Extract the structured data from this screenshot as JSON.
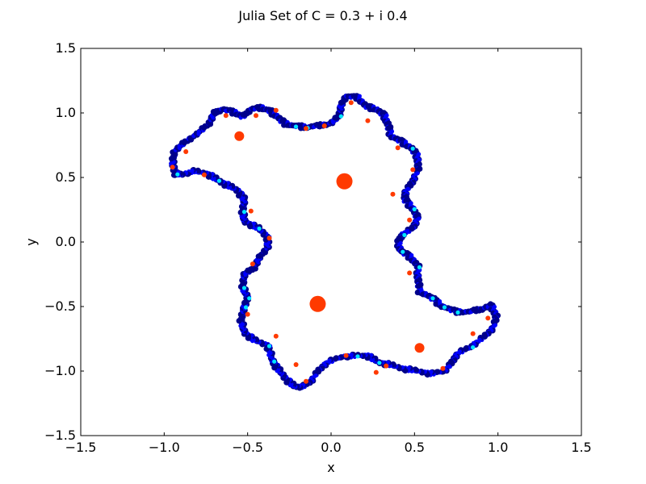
{
  "chart_data": {
    "type": "scatter",
    "title": "Julia Set of C = 0.3 + i 0.4",
    "xlabel": "x",
    "ylabel": "y",
    "xlim": [
      -1.5,
      1.5
    ],
    "ylim": [
      -1.5,
      1.5
    ],
    "xticks": [
      -1.5,
      -1.0,
      -0.5,
      0.0,
      0.5,
      1.0,
      1.5
    ],
    "yticks": [
      -1.5,
      -1.0,
      -0.5,
      0.0,
      0.5,
      1.0,
      1.5
    ],
    "xtick_labels": [
      "−1.5",
      "−1.0",
      "−0.5",
      "0.0",
      "0.5",
      "1.0",
      "1.5"
    ],
    "ytick_labels": [
      "−1.5",
      "−1.0",
      "−0.5",
      "0.0",
      "0.5",
      "1.0",
      "1.5"
    ],
    "grid": false,
    "colors": {
      "boundary_dark": "#00008b",
      "boundary_mid": "#0000ff",
      "boundary_light": "#00e5ff",
      "interior": "#ff3a00"
    },
    "boundary": [
      [
        -0.93,
        0.53
      ],
      [
        -0.95,
        0.6
      ],
      [
        -0.94,
        0.7
      ],
      [
        -0.88,
        0.77
      ],
      [
        -0.8,
        0.84
      ],
      [
        -0.73,
        0.92
      ],
      [
        -0.7,
        1.0
      ],
      [
        -0.65,
        1.03
      ],
      [
        -0.57,
        1.0
      ],
      [
        -0.53,
        0.97
      ],
      [
        -0.48,
        1.03
      ],
      [
        -0.42,
        1.04
      ],
      [
        -0.37,
        1.02
      ],
      [
        -0.33,
        0.98
      ],
      [
        -0.28,
        0.92
      ],
      [
        -0.22,
        0.9
      ],
      [
        -0.15,
        0.89
      ],
      [
        -0.08,
        0.9
      ],
      [
        0.0,
        0.92
      ],
      [
        0.05,
        0.98
      ],
      [
        0.06,
        1.06
      ],
      [
        0.09,
        1.13
      ],
      [
        0.16,
        1.12
      ],
      [
        0.21,
        1.05
      ],
      [
        0.27,
        1.03
      ],
      [
        0.32,
        0.98
      ],
      [
        0.34,
        0.91
      ],
      [
        0.36,
        0.82
      ],
      [
        0.42,
        0.78
      ],
      [
        0.48,
        0.73
      ],
      [
        0.52,
        0.66
      ],
      [
        0.52,
        0.56
      ],
      [
        0.49,
        0.47
      ],
      [
        0.45,
        0.4
      ],
      [
        0.44,
        0.33
      ],
      [
        0.49,
        0.26
      ],
      [
        0.52,
        0.18
      ],
      [
        0.49,
        0.11
      ],
      [
        0.43,
        0.06
      ],
      [
        0.4,
        0.0
      ],
      [
        0.42,
        -0.07
      ],
      [
        0.48,
        -0.12
      ],
      [
        0.52,
        -0.19
      ],
      [
        0.52,
        -0.28
      ],
      [
        0.53,
        -0.38
      ],
      [
        0.6,
        -0.43
      ],
      [
        0.67,
        -0.5
      ],
      [
        0.75,
        -0.54
      ],
      [
        0.83,
        -0.54
      ],
      [
        0.9,
        -0.52
      ],
      [
        0.96,
        -0.49
      ],
      [
        0.99,
        -0.57
      ],
      [
        0.97,
        -0.67
      ],
      [
        0.91,
        -0.74
      ],
      [
        0.84,
        -0.81
      ],
      [
        0.76,
        -0.86
      ],
      [
        0.72,
        -0.94
      ],
      [
        0.68,
        -1.0
      ],
      [
        0.6,
        -1.02
      ],
      [
        0.52,
        -1.0
      ],
      [
        0.43,
        -0.98
      ],
      [
        0.35,
        -0.95
      ],
      [
        0.28,
        -0.93
      ],
      [
        0.22,
        -0.88
      ],
      [
        0.15,
        -0.88
      ],
      [
        0.06,
        -0.89
      ],
      [
        -0.02,
        -0.93
      ],
      [
        -0.08,
        -1.0
      ],
      [
        -0.12,
        -1.08
      ],
      [
        -0.17,
        -1.12
      ],
      [
        -0.22,
        -1.12
      ],
      [
        -0.27,
        -1.06
      ],
      [
        -0.32,
        -0.98
      ],
      [
        -0.35,
        -0.92
      ],
      [
        -0.38,
        -0.8
      ],
      [
        -0.46,
        -0.76
      ],
      [
        -0.52,
        -0.7
      ],
      [
        -0.54,
        -0.6
      ],
      [
        -0.52,
        -0.5
      ],
      [
        -0.5,
        -0.43
      ],
      [
        -0.53,
        -0.35
      ],
      [
        -0.52,
        -0.25
      ],
      [
        -0.46,
        -0.2
      ],
      [
        -0.43,
        -0.12
      ],
      [
        -0.38,
        -0.04
      ],
      [
        -0.38,
        0.04
      ],
      [
        -0.44,
        0.11
      ],
      [
        -0.52,
        0.16
      ],
      [
        -0.53,
        0.24
      ],
      [
        -0.52,
        0.33
      ],
      [
        -0.56,
        0.4
      ],
      [
        -0.62,
        0.44
      ],
      [
        -0.68,
        0.48
      ],
      [
        -0.74,
        0.53
      ],
      [
        -0.82,
        0.55
      ],
      [
        -0.9,
        0.52
      ]
    ],
    "highlight_points": [
      [
        -0.93,
        0.53
      ],
      [
        -0.68,
        0.48
      ],
      [
        -0.53,
        0.24
      ],
      [
        -0.38,
        0.04
      ],
      [
        -0.44,
        0.11
      ],
      [
        -0.5,
        -0.43
      ],
      [
        -0.52,
        -0.5
      ],
      [
        -0.35,
        -0.92
      ],
      [
        -0.38,
        -0.8
      ],
      [
        0.15,
        -0.88
      ],
      [
        0.28,
        -0.93
      ],
      [
        0.43,
        0.06
      ],
      [
        0.42,
        -0.07
      ],
      [
        0.6,
        -0.43
      ],
      [
        0.67,
        -0.5
      ],
      [
        0.75,
        -0.54
      ],
      [
        0.84,
        -0.81
      ],
      [
        -0.22,
        0.9
      ],
      [
        -0.15,
        0.89
      ],
      [
        0.05,
        0.98
      ],
      [
        0.48,
        0.73
      ],
      [
        0.49,
        0.26
      ],
      [
        0.52,
        -0.19
      ],
      [
        -0.53,
        -0.35
      ]
    ],
    "interior_points": [
      [
        0.08,
        0.47
      ],
      [
        -0.08,
        -0.48
      ],
      [
        -0.55,
        0.82
      ],
      [
        0.53,
        -0.82
      ],
      [
        0.12,
        1.08
      ],
      [
        -0.33,
        1.02
      ],
      [
        -0.87,
        0.7
      ],
      [
        -0.95,
        0.58
      ],
      [
        -0.76,
        0.52
      ],
      [
        0.22,
        0.94
      ],
      [
        0.49,
        0.56
      ],
      [
        0.47,
        0.17
      ],
      [
        0.47,
        -0.24
      ],
      [
        0.85,
        -0.71
      ],
      [
        0.94,
        -0.59
      ],
      [
        0.67,
        -0.98
      ],
      [
        0.33,
        -0.96
      ],
      [
        0.09,
        -0.88
      ],
      [
        -0.21,
        -0.95
      ],
      [
        -0.33,
        -0.73
      ],
      [
        -0.5,
        -0.56
      ],
      [
        -0.47,
        -0.17
      ],
      [
        -0.48,
        0.24
      ],
      [
        -0.37,
        0.03
      ],
      [
        -0.15,
        0.88
      ],
      [
        -0.63,
        0.98
      ],
      [
        0.37,
        0.37
      ],
      [
        -0.15,
        -1.08
      ],
      [
        0.4,
        0.73
      ],
      [
        -0.45,
        0.98
      ],
      [
        0.27,
        -1.01
      ],
      [
        -0.04,
        0.9
      ]
    ],
    "large_interior_indices": [
      0,
      1,
      2,
      3
    ]
  }
}
